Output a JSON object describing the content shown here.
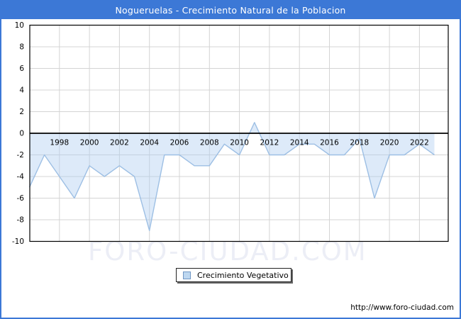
{
  "window": {
    "title": "Nogueruelas - Crecimiento Natural de la Poblacion"
  },
  "legend": {
    "label": "Crecimiento Vegetativo"
  },
  "watermark": "FORO-CIUDAD.COM",
  "footer": {
    "url": "http://www.foro-ciudad.com"
  },
  "colors": {
    "titlebar": "#3C78D6",
    "frame": "#3C78D6",
    "line": "#9DBFE4",
    "fill": "rgba(173,206,240,0.42)",
    "grid": "#D4D4D4",
    "axis": "#000000",
    "watermark": "#ECEEF6",
    "legend_swatch_fill": "#BDD7F0",
    "legend_swatch_border": "#7096C4"
  },
  "chart_data": {
    "type": "area",
    "title": "Nogueruelas - Crecimiento Natural de la Poblacion",
    "x": [
      1996,
      1997,
      1998,
      1999,
      2000,
      2001,
      2002,
      2003,
      2004,
      2005,
      2006,
      2007,
      2008,
      2009,
      2010,
      2011,
      2012,
      2013,
      2014,
      2015,
      2016,
      2017,
      2018,
      2019,
      2020,
      2021,
      2022,
      2023
    ],
    "series": [
      {
        "name": "Crecimiento Vegetativo",
        "values": [
          -5,
          -2,
          -4,
          -6,
          -3,
          -4,
          -3,
          -4,
          -9,
          -2,
          -2,
          -3,
          -3,
          -1,
          -2,
          1,
          -2,
          -2,
          -1,
          -1,
          -2,
          -2,
          -0.5,
          -6,
          -2,
          -2,
          -1,
          -2
        ]
      }
    ],
    "xlabel": "",
    "ylabel": "",
    "ylim": [
      -10,
      10
    ],
    "yticks": [
      10,
      8,
      6,
      4,
      2,
      0,
      -2,
      -4,
      -6,
      -8,
      -10
    ],
    "xtick_labels": [
      1998,
      2000,
      2002,
      2004,
      2006,
      2008,
      2010,
      2012,
      2014,
      2016,
      2018,
      2020,
      2022
    ],
    "grid": true,
    "legend_position": "bottom-center"
  }
}
